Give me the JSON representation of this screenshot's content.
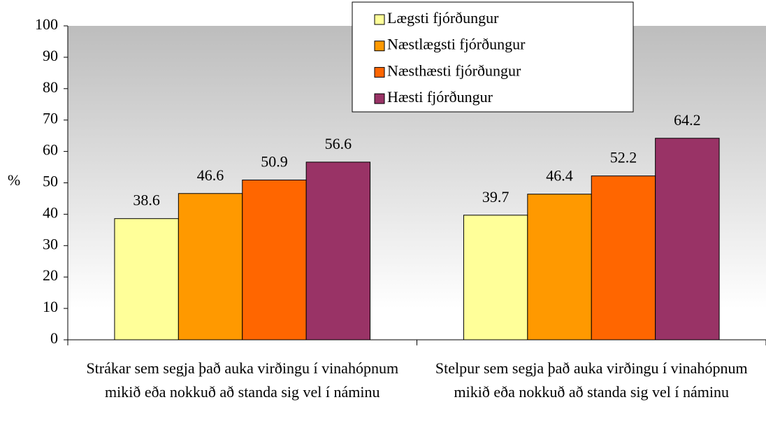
{
  "chart_data": {
    "type": "bar",
    "categories": [
      "Strákar sem segja það auka virðingu í vinahópnum mikið eða nokkuð að standa sig vel í náminu",
      "Stelpur sem segja það auka virðingu í vinahópnum mikið eða nokkuð að standa sig vel í náminu"
    ],
    "series": [
      {
        "name": "Lægsti fjórðungur",
        "color": "#ffff99",
        "values": [
          38.6,
          39.7
        ]
      },
      {
        "name": "Næstlægsti fjórðungur",
        "color": "#ff9900",
        "values": [
          46.6,
          46.4
        ]
      },
      {
        "name": "Næsthæsti fjórðungur",
        "color": "#ff6600",
        "values": [
          50.9,
          52.2
        ]
      },
      {
        "name": "Hæsti fjórðungur",
        "color": "#993366",
        "values": [
          56.6,
          64.2
        ]
      }
    ],
    "y_label": "%",
    "ylim": [
      0,
      100
    ],
    "yticks": [
      0,
      10,
      20,
      30,
      40,
      50,
      60,
      70,
      80,
      90,
      100
    ],
    "legend": "top"
  }
}
